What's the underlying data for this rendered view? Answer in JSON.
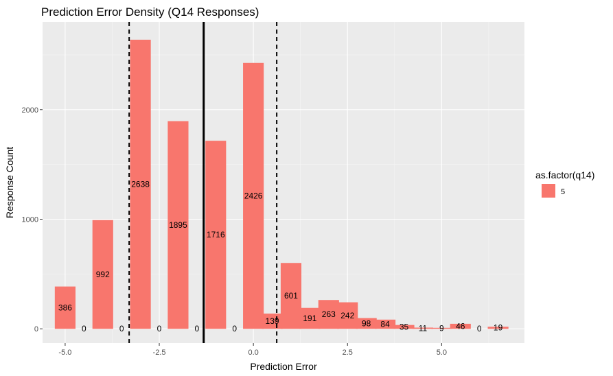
{
  "chart_data": {
    "type": "bar",
    "title": "Prediction Error Density (Q14 Responses)",
    "xlabel": "Prediction Error",
    "ylabel": "Response Count",
    "xlim": [
      -5.6,
      7.2
    ],
    "ylim": [
      -130,
      2800
    ],
    "bin_width": 0.55,
    "x_ticks": [
      {
        "value": -5.0,
        "label": "-5.0"
      },
      {
        "value": -2.5,
        "label": "-2.5"
      },
      {
        "value": 0.0,
        "label": "0.0"
      },
      {
        "value": 2.5,
        "label": "2.5"
      },
      {
        "value": 5.0,
        "label": "5.0"
      }
    ],
    "y_ticks": [
      {
        "value": 0,
        "label": "0"
      },
      {
        "value": 1000,
        "label": "1000"
      },
      {
        "value": 2000,
        "label": "2000"
      }
    ],
    "x_minor_ticks": [
      -3.75,
      -1.25,
      1.25,
      3.75,
      6.25
    ],
    "y_minor_ticks": [
      500,
      1500,
      2500
    ],
    "grid": true,
    "series": [
      {
        "name": "5",
        "color": "#F8766D",
        "points": [
          {
            "x": -5.0,
            "y": 386,
            "label": "386"
          },
          {
            "x": -4.5,
            "y": 0,
            "label": "0"
          },
          {
            "x": -4.0,
            "y": 992,
            "label": "992"
          },
          {
            "x": -3.5,
            "y": 0,
            "label": "0"
          },
          {
            "x": -3.0,
            "y": 2638,
            "label": "2638"
          },
          {
            "x": -2.5,
            "y": 0,
            "label": "0"
          },
          {
            "x": -2.0,
            "y": 1895,
            "label": "1895"
          },
          {
            "x": -1.5,
            "y": 0,
            "label": "0"
          },
          {
            "x": -1.0,
            "y": 1716,
            "label": "1716"
          },
          {
            "x": -0.5,
            "y": 0,
            "label": "0"
          },
          {
            "x": 0.0,
            "y": 2426,
            "label": "2426"
          },
          {
            "x": 0.5,
            "y": 139,
            "label": "139"
          },
          {
            "x": 1.0,
            "y": 601,
            "label": "601"
          },
          {
            "x": 1.5,
            "y": 191,
            "label": "191"
          },
          {
            "x": 2.0,
            "y": 263,
            "label": "263"
          },
          {
            "x": 2.5,
            "y": 242,
            "label": "242"
          },
          {
            "x": 3.0,
            "y": 98,
            "label": "98"
          },
          {
            "x": 3.5,
            "y": 84,
            "label": "84"
          },
          {
            "x": 4.0,
            "y": 35,
            "label": "35"
          },
          {
            "x": 4.5,
            "y": 11,
            "label": "11"
          },
          {
            "x": 5.0,
            "y": 9,
            "label": "9"
          },
          {
            "x": 5.5,
            "y": 46,
            "label": "46"
          },
          {
            "x": 6.0,
            "y": 0,
            "label": "0"
          },
          {
            "x": 6.5,
            "y": 19,
            "label": "19"
          }
        ]
      }
    ],
    "reference_lines": [
      {
        "x": -1.32,
        "style": "solid"
      },
      {
        "x": -3.3,
        "style": "dashed"
      },
      {
        "x": 0.62,
        "style": "dashed"
      }
    ],
    "legend": {
      "title": "as.factor(q14)",
      "entries": [
        {
          "label": "5",
          "color": "#F8766D"
        }
      ],
      "position": "right"
    },
    "colors": {
      "panel_background": "#EBEBEB",
      "grid_major": "#FFFFFF",
      "grid_minor": "#F5F5F5",
      "tick_text": "#4D4D4D",
      "reference_line": "#000000"
    }
  }
}
